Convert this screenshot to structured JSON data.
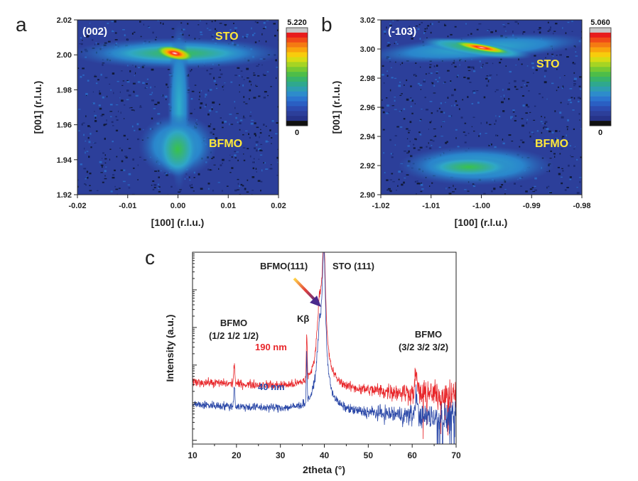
{
  "chart_data": [
    {
      "panel": "a",
      "type": "heatmap",
      "tag": "(002)",
      "xlabel": "[100] (r.l.u.)",
      "ylabel": "[001] (r.l.u.)",
      "xlim": [
        -0.02,
        0.02
      ],
      "ylim": [
        1.92,
        2.02
      ],
      "xticks": [
        "-0.02",
        "-0.01",
        "0.00",
        "0.01",
        "0.02"
      ],
      "yticks": [
        "1.92",
        "1.94",
        "1.96",
        "1.98",
        "2.00",
        "2.02"
      ],
      "colorbar": {
        "max": "5.220",
        "min": "0"
      },
      "peaks": [
        {
          "label": "STO",
          "x": 0.0,
          "y": 2.001
        },
        {
          "label": "BFMO",
          "x": -0.0003,
          "y": 1.945
        }
      ]
    },
    {
      "panel": "b",
      "type": "heatmap",
      "tag": "(-103)",
      "xlabel": "[100] (r.l.u.)",
      "ylabel": "[001] (r.l.u.)",
      "xlim": [
        -1.02,
        -0.98
      ],
      "ylim": [
        2.9,
        3.02
      ],
      "xticks": [
        "-1.02",
        "-1.01",
        "-1.00",
        "-0.99",
        "-0.98"
      ],
      "yticks": [
        "2.90",
        "2.92",
        "2.94",
        "2.96",
        "2.98",
        "3.00",
        "3.02"
      ],
      "colorbar": {
        "max": "5.060",
        "min": "0"
      },
      "peaks": [
        {
          "label": "STO",
          "x": -0.9995,
          "y": 3.0
        },
        {
          "label": "BFMO",
          "x": -1.0,
          "y": 2.918
        }
      ]
    },
    {
      "panel": "c",
      "type": "line",
      "xlabel": "2theta (°)",
      "ylabel": "Intensity (a.u.)",
      "xlim": [
        10,
        70
      ],
      "xticks": [
        "10",
        "20",
        "30",
        "40",
        "50",
        "60",
        "70"
      ],
      "yscale": "log",
      "series": [
        {
          "name": "190 nm",
          "color": "#e8272b",
          "baseline_log": 2.55
        },
        {
          "name": "40 nm",
          "color": "#2c49a8",
          "baseline_log": 1.95
        }
      ],
      "peaks": [
        {
          "x": 19.5,
          "label": "BFMO\n(1/2 1/2 1/2)"
        },
        {
          "x": 36.0,
          "label": "Kβ"
        },
        {
          "x": 38.8,
          "label": "BFMO(111)"
        },
        {
          "x": 39.9,
          "label": "STO (111)"
        },
        {
          "x": 60.9,
          "label": "BFMO\n(3/2 3/2 3/2)"
        }
      ]
    }
  ],
  "text": {
    "letter_a": "a",
    "letter_b": "b",
    "letter_c": "c",
    "sto": "STO",
    "bfmo": "BFMO",
    "tag_a": "(002)",
    "tag_b": "(-103)",
    "cb_a_max": "5.220",
    "cb_b_max": "5.060",
    "cb_min": "0",
    "x100": "[100] (r.l.u.)",
    "y001": "[001] (r.l.u.)",
    "c_xlabel": "2theta (°)",
    "c_ylabel": "Intensity (a.u.)",
    "c_bfmo_half_1": "BFMO",
    "c_bfmo_half_2": "(1/2 1/2 1/2)",
    "c_bfmo_32_1": "BFMO",
    "c_bfmo_32_2": "(3/2 3/2 3/2)",
    "c_bfmo111": "BFMO(111)",
    "c_sto111": "STO (111)",
    "c_kbeta": "Kβ",
    "c_190": "190 nm",
    "c_40": "40 nm"
  },
  "colors": {
    "map_bg": "#2c3f9a",
    "curve_red": "#e8272b",
    "curve_blue": "#2c49a8"
  }
}
